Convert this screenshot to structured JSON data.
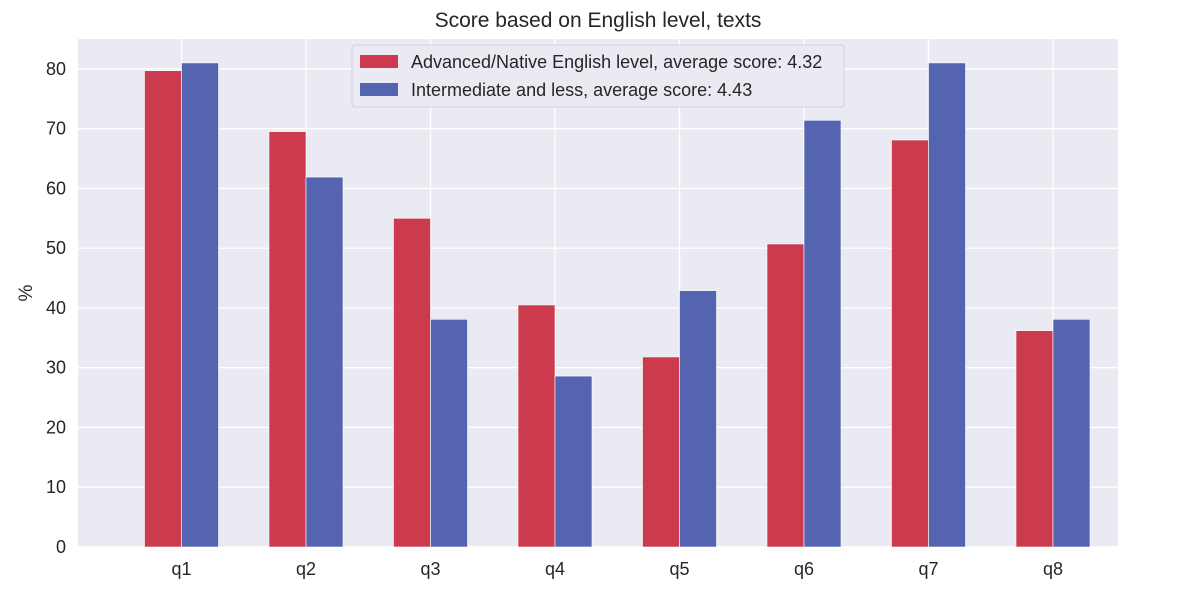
{
  "chart_data": {
    "type": "bar",
    "title": "Score based on English level, texts",
    "xlabel": "",
    "ylabel": "%",
    "categories": [
      "q1",
      "q2",
      "q3",
      "q4",
      "q5",
      "q6",
      "q7",
      "q8"
    ],
    "series": [
      {
        "name": "Advanced/Native English level, average score: 4.32",
        "color": "#cc3a4d",
        "values": [
          79.7,
          69.5,
          55.0,
          40.5,
          31.8,
          50.7,
          68.1,
          36.2
        ]
      },
      {
        "name": "Intermediate and less, average score: 4.43",
        "color": "#5564b0",
        "values": [
          81.0,
          61.9,
          38.1,
          28.6,
          42.9,
          71.4,
          81.0,
          38.1
        ]
      }
    ],
    "ylim": [
      0,
      85
    ],
    "yticks": [
      0,
      10,
      20,
      30,
      40,
      50,
      60,
      70,
      80
    ],
    "grid": true,
    "legend_position": "top-center",
    "background_color": "#eaeaf2"
  }
}
